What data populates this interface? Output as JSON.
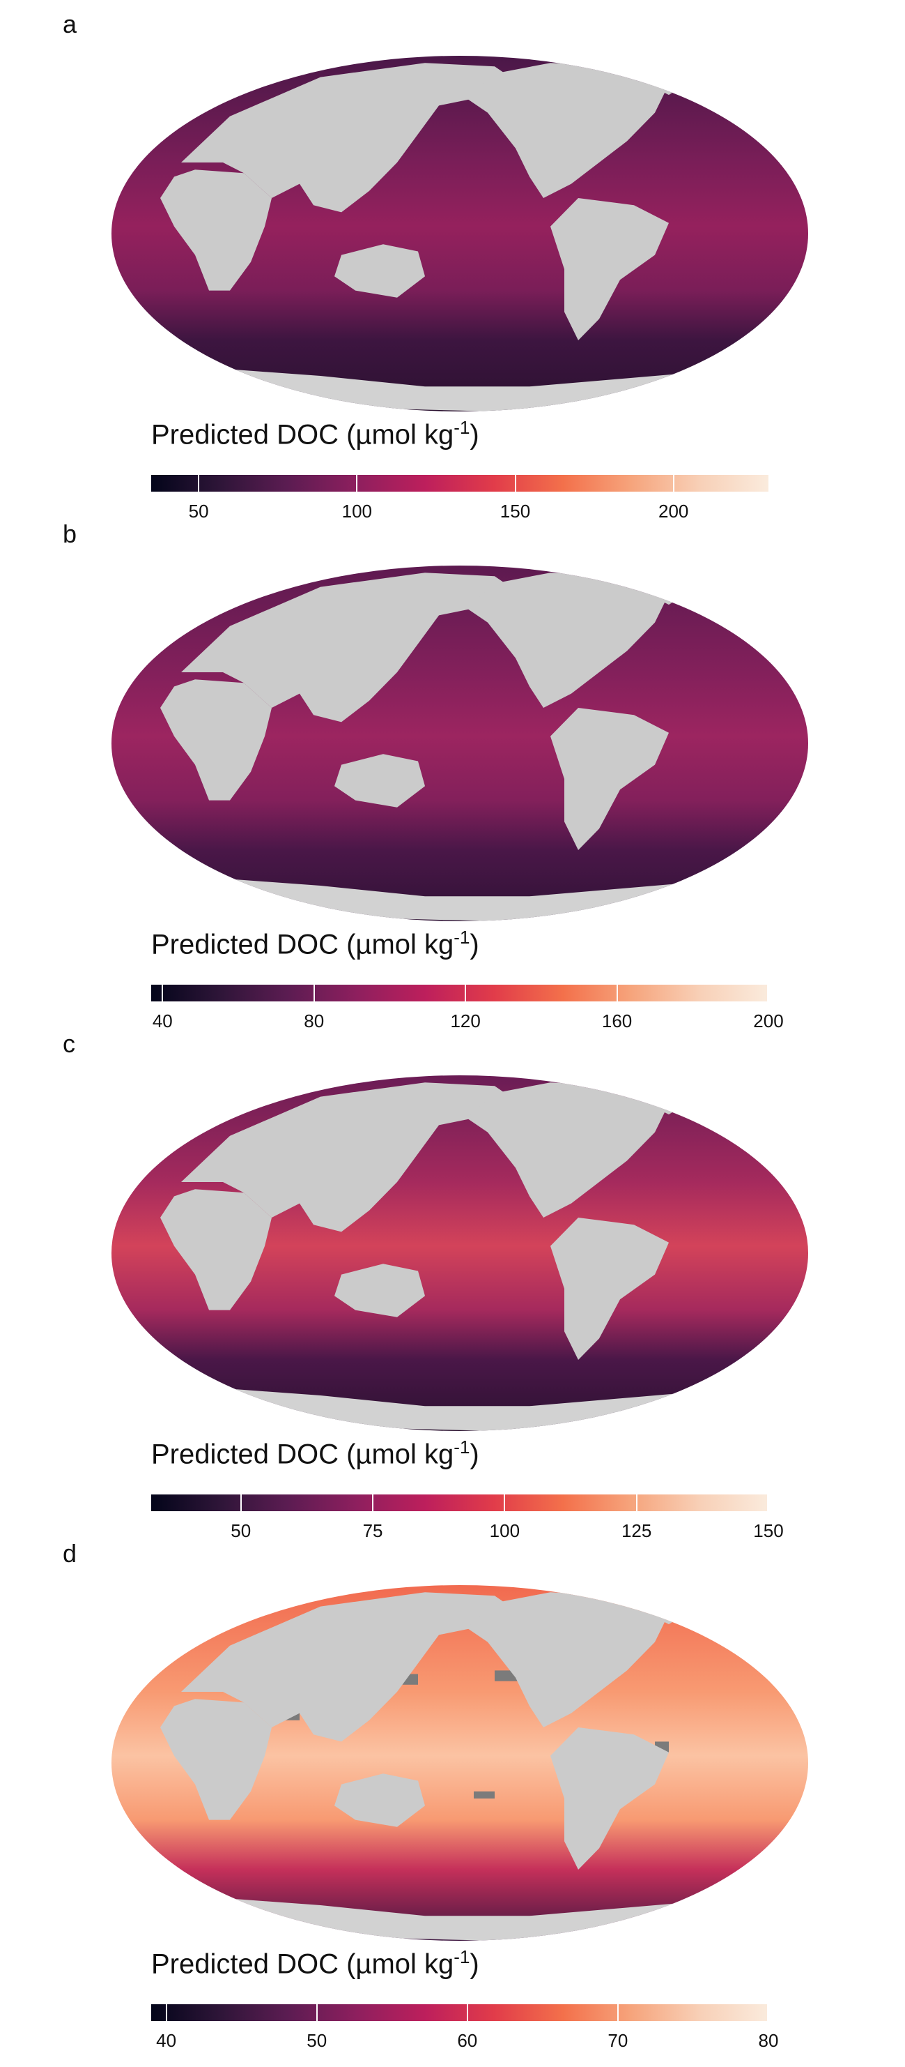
{
  "panels": [
    {
      "letter": "a",
      "legend": {
        "title_main": "Predicted DOC (µmol kg",
        "title_sup": "-1",
        "title_close": ")",
        "ticks": [
          "50",
          "100",
          "150",
          "200"
        ],
        "tick_values": [
          50,
          100,
          150,
          200
        ],
        "range": [
          35,
          230
        ]
      },
      "ocean_colors": [
        "#4a1748",
        "#7a1e58",
        "#95215d",
        "#3d1540",
        "#2b1130"
      ]
    },
    {
      "letter": "b",
      "legend": {
        "title_main": "Predicted DOC (µmol kg",
        "title_sup": "-1",
        "title_close": ")",
        "ticks": [
          "40",
          "80",
          "120",
          "160",
          "200"
        ],
        "tick_values": [
          40,
          80,
          120,
          160,
          200
        ],
        "range": [
          37,
          200
        ]
      },
      "ocean_colors": [
        "#5d1a50",
        "#83205b",
        "#9c2560",
        "#4a1748",
        "#2f1235"
      ]
    },
    {
      "letter": "c",
      "legend": {
        "title_main": "Predicted DOC (µmol kg",
        "title_sup": "-1",
        "title_close": ")",
        "ticks": [
          "50",
          "75",
          "100",
          "125",
          "150"
        ],
        "tick_values": [
          50,
          75,
          100,
          125,
          150
        ],
        "range": [
          33,
          150
        ]
      },
      "ocean_colors": [
        "#6a1c55",
        "#a52a5d",
        "#d3435a",
        "#4a1748",
        "#2b1130"
      ]
    },
    {
      "letter": "d",
      "legend": {
        "title_main": "Predicted DOC (µmol kg",
        "title_sup": "-1",
        "title_close": ")",
        "ticks": [
          "40",
          "50",
          "60",
          "70",
          "80"
        ],
        "tick_values": [
          40,
          50,
          60,
          70,
          80
        ],
        "range": [
          39,
          80
        ]
      },
      "ocean_colors": [
        "#f16a4f",
        "#f89a72",
        "#fbc3a3",
        "#c5305a",
        "#3d1540"
      ]
    }
  ],
  "colors": {
    "land": "#cbcbcb",
    "antarctica": "#d2d2d2",
    "no_data": "#7b7b7b",
    "colormap": [
      "#03051a",
      "#2e1538",
      "#5c1c52",
      "#8e1f5e",
      "#bd1f5c",
      "#e13c4a",
      "#f3704b",
      "#f6a47c",
      "#f8d0b7",
      "#faebdd"
    ]
  }
}
